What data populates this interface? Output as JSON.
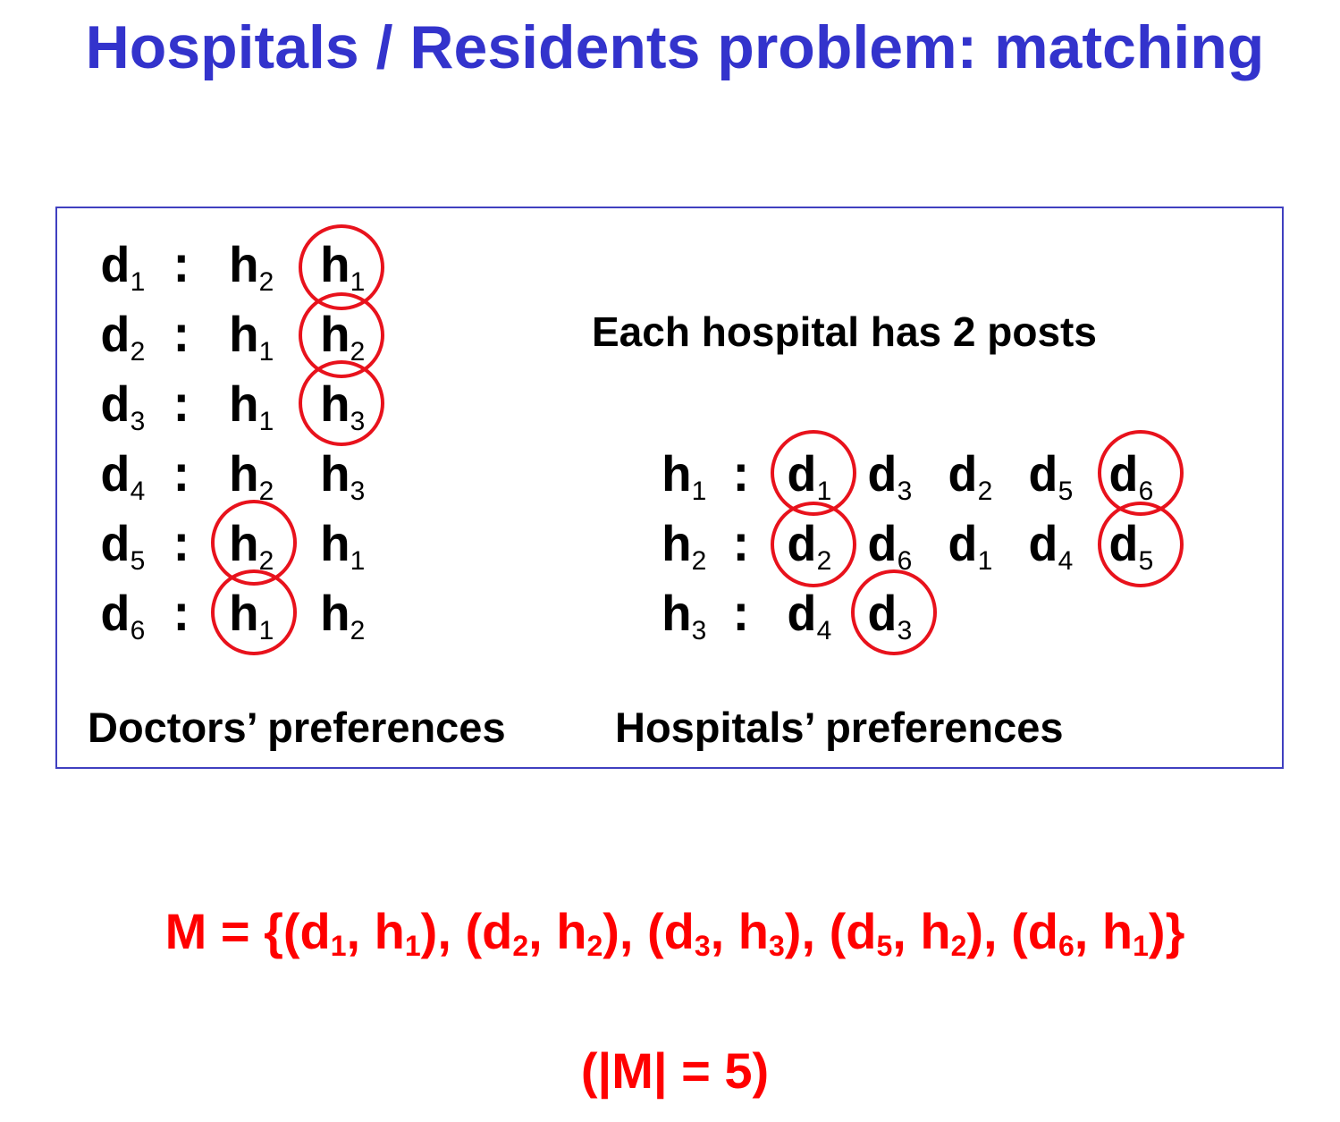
{
  "title": "Hospitals / Residents problem: matching",
  "doctors": [
    {
      "name": "d",
      "idx": "1",
      "prefs": [
        {
          "h": "h",
          "i": "2"
        },
        {
          "h": "h",
          "i": "1"
        }
      ]
    },
    {
      "name": "d",
      "idx": "2",
      "prefs": [
        {
          "h": "h",
          "i": "1"
        },
        {
          "h": "h",
          "i": "2"
        }
      ]
    },
    {
      "name": "d",
      "idx": "3",
      "prefs": [
        {
          "h": "h",
          "i": "1"
        },
        {
          "h": "h",
          "i": "3"
        }
      ]
    },
    {
      "name": "d",
      "idx": "4",
      "prefs": [
        {
          "h": "h",
          "i": "2"
        },
        {
          "h": "h",
          "i": "3"
        }
      ]
    },
    {
      "name": "d",
      "idx": "5",
      "prefs": [
        {
          "h": "h",
          "i": "2"
        },
        {
          "h": "h",
          "i": "1"
        }
      ]
    },
    {
      "name": "d",
      "idx": "6",
      "prefs": [
        {
          "h": "h",
          "i": "1"
        },
        {
          "h": "h",
          "i": "2"
        }
      ]
    }
  ],
  "capacity_note": "Each hospital has 2 posts",
  "hospitals": [
    {
      "name": "h",
      "idx": "1",
      "prefs": [
        "1",
        "3",
        "2",
        "5",
        "6"
      ]
    },
    {
      "name": "h",
      "idx": "2",
      "prefs": [
        "2",
        "6",
        "1",
        "4",
        "5"
      ]
    },
    {
      "name": "h",
      "idx": "3",
      "prefs": [
        "4",
        "3"
      ]
    }
  ],
  "doctors_label": "Doctors’ preferences",
  "hospitals_label": "Hospitals’ preferences",
  "matching": {
    "prefix": "M = {",
    "pairs": [
      {
        "d": "1",
        "h": "1"
      },
      {
        "d": "2",
        "h": "2"
      },
      {
        "d": "3",
        "h": "3"
      },
      {
        "d": "5",
        "h": "2"
      },
      {
        "d": "6",
        "h": "1"
      }
    ],
    "suffix": "}",
    "size_text": "(|M| = 5)"
  },
  "highlight_color": "#e8121c",
  "title_color": "#3333cc"
}
